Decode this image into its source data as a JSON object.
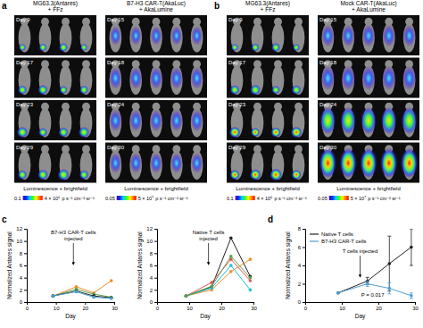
{
  "panel_labels": [
    "a",
    "b",
    "c",
    "d"
  ],
  "panels": [
    {
      "columns": [
        {
          "title": [
            "MG63.3(Antares)",
            "+ FFz"
          ],
          "days": [
            "Day 9",
            "Day 17",
            "Day 23",
            "Day 29"
          ],
          "footer": "Luminescence + brightfield",
          "colorbar": {
            "ticks": [
              0.1,
              {
                "value": 4000000,
                "label": "4 × 10⁶"
              }
            ],
            "unit": "p s⁻¹ cm⁻² sr⁻¹"
          }
        },
        {
          "title": [
            "B7-H3 CAR-T(AkaLuc)",
            "+ AkaLumine"
          ],
          "days": [
            "Day 15",
            "Day 18",
            "Day 24",
            "Day 30"
          ],
          "footer": "Luminescence + brightfield",
          "colorbar": {
            "ticks": [
              0.05,
              {
                "value": 50000000,
                "label": "5 × 10⁷"
              }
            ],
            "unit": "p s⁻¹ cm⁻² sr⁻¹"
          }
        }
      ]
    },
    {
      "columns": [
        {
          "title": [
            "MG63.3(Antares)",
            "+ FFz"
          ],
          "days": [
            "Day 9",
            "Day 17",
            "Day 23",
            "Day 29"
          ],
          "footer": "Luminescence + brightfield",
          "colorbar": {
            "ticks": [
              0.1,
              {
                "value": 4000000,
                "label": "4 × 10⁶"
              }
            ],
            "unit": "p s⁻¹ cm⁻² sr⁻¹"
          }
        },
        {
          "title": [
            "Mock CAR-T(AkaLuc)",
            "+ AkaLumine"
          ],
          "days": [
            "Day 15",
            "Day 18",
            "Day 24",
            "Day 30"
          ],
          "footer": "Luminescence + brightfield",
          "colorbar": {
            "ticks": [
              0.05,
              {
                "value": 50000000,
                "label": "5 × 10⁷"
              }
            ],
            "unit": "p s⁻¹ cm⁻² sr⁻¹"
          }
        }
      ]
    }
  ],
  "chart_data": [
    {
      "type": "line",
      "marker": "circle",
      "x": [
        9,
        17,
        23,
        29
      ],
      "xlim": [
        0,
        30
      ],
      "xticks": [
        0,
        10,
        20,
        30
      ],
      "ylim": [
        0,
        12
      ],
      "yticks": [
        0,
        2,
        4,
        6,
        8,
        10,
        12
      ],
      "x_label": "Day",
      "y_label": "Normalized Antares signal",
      "series": [
        {
          "color": "#f28e2b",
          "values": [
            1,
            2.5,
            1.5,
            3.5
          ]
        },
        {
          "color": "#59a14f",
          "values": [
            1,
            2.1,
            1.3,
            0.8
          ]
        },
        {
          "color": "#222222",
          "values": [
            1,
            1.8,
            1.0,
            0.7
          ]
        },
        {
          "color": "#4e9fd1",
          "values": [
            1,
            1.7,
            0.8,
            0.6
          ]
        }
      ],
      "annotations": [
        {
          "text": [
            "B7-H3 CAR-T cells",
            "injected"
          ],
          "x": 16
        }
      ]
    },
    {
      "type": "line",
      "marker": "circle",
      "x": [
        9,
        17,
        23,
        29
      ],
      "xlim": [
        0,
        30
      ],
      "xticks": [
        0,
        10,
        20,
        30
      ],
      "ylim": [
        0,
        12
      ],
      "yticks": [
        0,
        2,
        4,
        6,
        8,
        10,
        12
      ],
      "x_label": "Day",
      "y_label": "Normalized Antares signal",
      "series": [
        {
          "color": "#222222",
          "values": [
            1,
            2.5,
            10.5,
            4.2
          ]
        },
        {
          "color": "#e15759",
          "values": [
            1,
            3.2,
            7,
            3.5
          ]
        },
        {
          "color": "#f28e2b",
          "values": [
            1,
            2,
            5,
            7
          ]
        },
        {
          "color": "#17becf",
          "values": [
            1,
            2.3,
            6,
            2
          ]
        },
        {
          "color": "#59a14f",
          "values": [
            1,
            2.6,
            7.5,
            4
          ]
        }
      ],
      "annotations": [
        {
          "text": [
            "Native T cells",
            "injected"
          ],
          "x": 16
        }
      ]
    },
    {
      "type": "line",
      "marker": "circle",
      "legend": "upper left",
      "x": [
        9,
        17,
        23,
        29
      ],
      "xlim": [
        0,
        30
      ],
      "xticks": [
        0,
        10,
        20,
        30
      ],
      "ylim": [
        0,
        8
      ],
      "yticks": [
        0,
        2,
        4,
        6,
        8
      ],
      "x_label": "Day",
      "y_label": "Normalized Antares signal",
      "series": [
        {
          "name": "Native T cells",
          "color": "#222222",
          "values": [
            1,
            2.3,
            4.2,
            6
          ],
          "errors": [
            0,
            0.4,
            3,
            2
          ]
        },
        {
          "name": "B7-H3 CAR-T cells",
          "color": "#4e9fd1",
          "values": [
            1,
            2,
            1.5,
            0.7
          ],
          "errors": [
            0,
            0.3,
            0.6,
            0.3
          ]
        }
      ],
      "annotations": [
        {
          "text": [
            "T cells injected"
          ],
          "x": 15
        },
        {
          "text": [
            "P = 0.017"
          ]
        }
      ]
    }
  ]
}
